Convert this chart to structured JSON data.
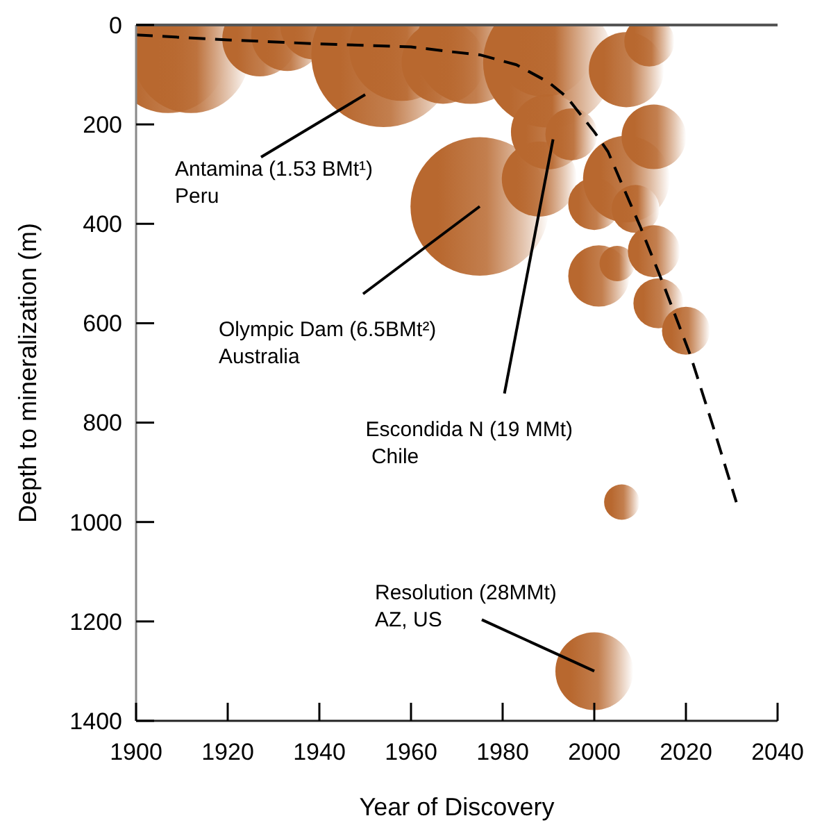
{
  "chart_data": {
    "type": "bubble",
    "xlabel": "Year of Discovery",
    "ylabel": "Depth to mineralization (m)",
    "xlim": [
      1900,
      2040
    ],
    "xticks": [
      1900,
      1920,
      1940,
      1960,
      1980,
      2000,
      2020,
      2040
    ],
    "ylim": [
      1400,
      0
    ],
    "yticks": [
      0,
      200,
      400,
      600,
      800,
      1000,
      1200,
      1400
    ],
    "grid": false,
    "series": [
      {
        "color": "#b8682f",
        "x": [
          1907,
          1912,
          1927,
          1933,
          1939,
          1954,
          1958,
          1967,
          1973,
          1975,
          1989,
          1990,
          1988,
          1990,
          1995,
          2000,
          2001,
          2005,
          2006,
          2007,
          2007,
          2009,
          2012,
          2013,
          2013,
          2014,
          2020,
          2000
        ],
        "values": [
          60,
          60,
          28,
          20,
          0,
          60,
          47,
          75,
          47,
          365,
          47,
          75,
          310,
          215,
          220,
          360,
          505,
          480,
          960,
          90,
          310,
          370,
          33,
          225,
          455,
          560,
          615,
          1300
        ],
        "sizes": [
          0.65,
          0.65,
          0.27,
          0.25,
          0.23,
          1,
          0.53,
          0.33,
          0.59,
          0.92,
          0.45,
          0.82,
          0.27,
          0.27,
          0.13,
          0.13,
          0.18,
          0.06,
          0.06,
          0.27,
          0.36,
          0.11,
          0.12,
          0.2,
          0.13,
          0.12,
          0.11,
          0.29
        ]
      },
      {
        "type": "line",
        "color": "#000000",
        "line_style": "dashed",
        "marker": "none",
        "x": [
          1900,
          1920,
          1940,
          1960,
          1968,
          1975,
          1983,
          1990,
          1994,
          2000,
          2003,
          2010,
          2015,
          2021,
          2026,
          2031
        ],
        "values": [
          20,
          30,
          38,
          44,
          53,
          60,
          80,
          115,
          145,
          215,
          255,
          405,
          520,
          665,
          810,
          960
        ]
      }
    ],
    "annotations": [
      {
        "text": "Antamina (1.53 BMt¹)\nPeru",
        "x": 1950,
        "y": 140
      },
      {
        "text": "Olympic Dam (6.5BMt²)\nAustralia",
        "x": 1975,
        "y": 365
      },
      {
        "text": "Escondida N (19 MMt)\n Chile",
        "x": 1991,
        "y": 230
      },
      {
        "text": "Resolution (28MMt)\nAZ, US",
        "x": 2000,
        "y": 1300
      }
    ]
  }
}
